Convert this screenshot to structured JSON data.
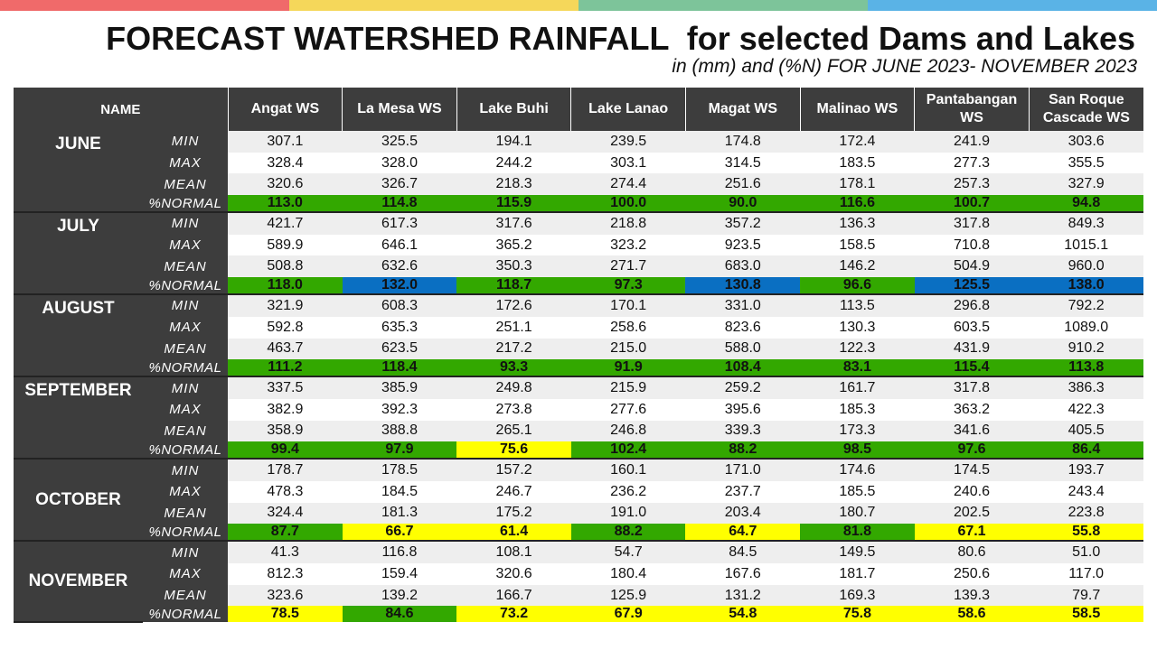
{
  "header": {
    "title": "FORECAST WATERSHED RAINFALL  for selected Dams and Lakes",
    "subtitle": "in (mm) and (%N) FOR JUNE 2023- NOVEMBER 2023"
  },
  "table": {
    "name_label": "NAME",
    "columns": [
      "Angat WS",
      "La Mesa WS",
      "Lake Buhi",
      "Lake Lanao",
      "Magat WS",
      "Malinao WS",
      "Pantabangan WS",
      "San Roque Cascade WS"
    ],
    "stat_labels": [
      "MIN",
      "MAX",
      "MEAN",
      "%NORMAL"
    ],
    "months": [
      {
        "name": "JUNE",
        "min": [
          "307.1",
          "325.5",
          "194.1",
          "239.5",
          "174.8",
          "172.4",
          "241.9",
          "303.6"
        ],
        "max": [
          "328.4",
          "328.0",
          "244.2",
          "303.1",
          "314.5",
          "183.5",
          "277.3",
          "355.5"
        ],
        "mean": [
          "320.6",
          "326.7",
          "218.3",
          "274.4",
          "251.6",
          "178.1",
          "257.3",
          "327.9"
        ],
        "normal": [
          "113.0",
          "114.8",
          "115.9",
          "100.0",
          "90.0",
          "116.6",
          "100.7",
          "94.8"
        ],
        "normal_colors": [
          "green",
          "green",
          "green",
          "green",
          "green",
          "green",
          "green",
          "green"
        ]
      },
      {
        "name": "JULY",
        "min": [
          "421.7",
          "617.3",
          "317.6",
          "218.8",
          "357.2",
          "136.3",
          "317.8",
          "849.3"
        ],
        "max": [
          "589.9",
          "646.1",
          "365.2",
          "323.2",
          "923.5",
          "158.5",
          "710.8",
          "1015.1"
        ],
        "mean": [
          "508.8",
          "632.6",
          "350.3",
          "271.7",
          "683.0",
          "146.2",
          "504.9",
          "960.0"
        ],
        "normal": [
          "118.0",
          "132.0",
          "118.7",
          "97.3",
          "130.8",
          "96.6",
          "125.5",
          "138.0"
        ],
        "normal_colors": [
          "green",
          "blue",
          "green",
          "green",
          "blue",
          "green",
          "blue",
          "blue"
        ]
      },
      {
        "name": "AUGUST",
        "min": [
          "321.9",
          "608.3",
          "172.6",
          "170.1",
          "331.0",
          "113.5",
          "296.8",
          "792.2"
        ],
        "max": [
          "592.8",
          "635.3",
          "251.1",
          "258.6",
          "823.6",
          "130.3",
          "603.5",
          "1089.0"
        ],
        "mean": [
          "463.7",
          "623.5",
          "217.2",
          "215.0",
          "588.0",
          "122.3",
          "431.9",
          "910.2"
        ],
        "normal": [
          "111.2",
          "118.4",
          "93.3",
          "91.9",
          "108.4",
          "83.1",
          "115.4",
          "113.8"
        ],
        "normal_colors": [
          "green",
          "green",
          "green",
          "green",
          "green",
          "green",
          "green",
          "green"
        ]
      },
      {
        "name": "SEPTEMBER",
        "min": [
          "337.5",
          "385.9",
          "249.8",
          "215.9",
          "259.2",
          "161.7",
          "317.8",
          "386.3"
        ],
        "max": [
          "382.9",
          "392.3",
          "273.8",
          "277.6",
          "395.6",
          "185.3",
          "363.2",
          "422.3"
        ],
        "mean": [
          "358.9",
          "388.8",
          "265.1",
          "246.8",
          "339.3",
          "173.3",
          "341.6",
          "405.5"
        ],
        "normal": [
          "99.4",
          "97.9",
          "75.6",
          "102.4",
          "88.2",
          "98.5",
          "97.6",
          "86.4"
        ],
        "normal_colors": [
          "green",
          "green",
          "yellow",
          "green",
          "green",
          "green",
          "green",
          "green"
        ]
      },
      {
        "name": "OCTOBER",
        "min": [
          "178.7",
          "178.5",
          "157.2",
          "160.1",
          "171.0",
          "174.6",
          "174.5",
          "193.7"
        ],
        "max": [
          "478.3",
          "184.5",
          "246.7",
          "236.2",
          "237.7",
          "185.5",
          "240.6",
          "243.4"
        ],
        "mean": [
          "324.4",
          "181.3",
          "175.2",
          "191.0",
          "203.4",
          "180.7",
          "202.5",
          "223.8"
        ],
        "normal": [
          "87.7",
          "66.7",
          "61.4",
          "88.2",
          "64.7",
          "81.8",
          "67.1",
          "55.8"
        ],
        "normal_colors": [
          "green",
          "yellow",
          "yellow",
          "green",
          "yellow",
          "green",
          "yellow",
          "yellow"
        ]
      },
      {
        "name": "NOVEMBER",
        "min": [
          "41.3",
          "116.8",
          "108.1",
          "54.7",
          "84.5",
          "149.5",
          "80.6",
          "51.0"
        ],
        "max": [
          "812.3",
          "159.4",
          "320.6",
          "180.4",
          "167.6",
          "181.7",
          "250.6",
          "117.0"
        ],
        "mean": [
          "323.6",
          "139.2",
          "166.7",
          "125.9",
          "131.2",
          "169.3",
          "139.3",
          "79.7"
        ],
        "normal": [
          "78.5",
          "84.6",
          "73.2",
          "67.9",
          "54.8",
          "75.8",
          "58.6",
          "58.5"
        ],
        "normal_colors": [
          "yellow",
          "green",
          "yellow",
          "yellow",
          "yellow",
          "yellow",
          "yellow",
          "yellow"
        ]
      }
    ]
  },
  "colors": {
    "green": "#33a800",
    "blue": "#0a6fc2",
    "yellow": "#ffff00",
    "header_bg": "#3d3d3d",
    "top_bar": [
      "#f06a6a",
      "#f5d75a",
      "#7dc49a",
      "#5ab3e6"
    ]
  }
}
